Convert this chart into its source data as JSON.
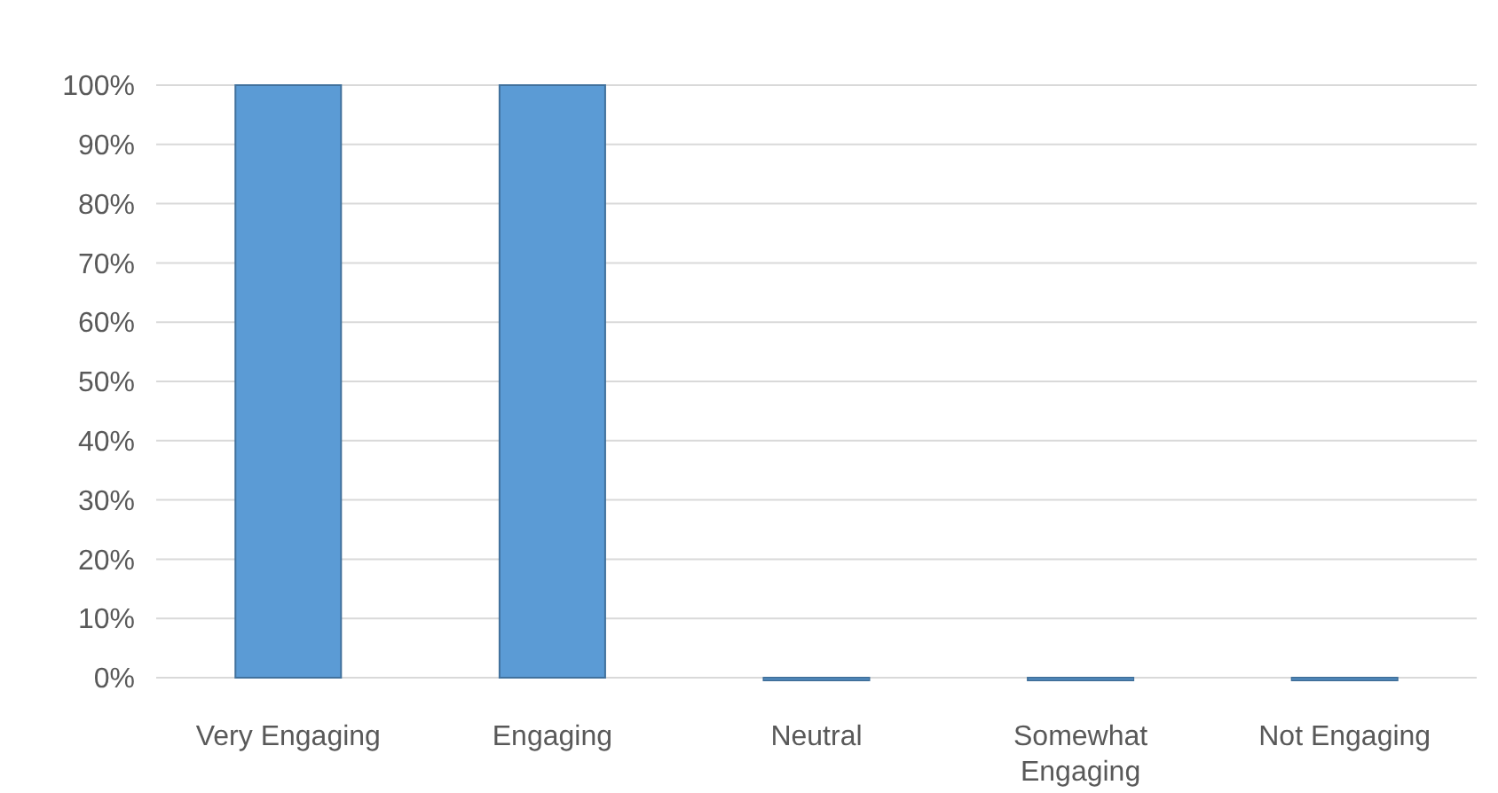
{
  "chart_data": {
    "type": "bar",
    "categories": [
      "Very Engaging",
      "Engaging",
      "Neutral",
      "Somewhat Engaging",
      "Not Engaging"
    ],
    "values": [
      100,
      100,
      0,
      0,
      0
    ],
    "color": "#5b9bd5",
    "ylim": [
      0,
      100
    ],
    "yticks": [
      {
        "value": 0,
        "label": "0%"
      },
      {
        "value": 10,
        "label": "10%"
      },
      {
        "value": 20,
        "label": "20%"
      },
      {
        "value": 30,
        "label": "30%"
      },
      {
        "value": 40,
        "label": "40%"
      },
      {
        "value": 50,
        "label": "50%"
      },
      {
        "value": 60,
        "label": "60%"
      },
      {
        "value": 70,
        "label": "70%"
      },
      {
        "value": 80,
        "label": "80%"
      },
      {
        "value": 90,
        "label": "90%"
      },
      {
        "value": 100,
        "label": "100%"
      }
    ],
    "grid": true
  }
}
